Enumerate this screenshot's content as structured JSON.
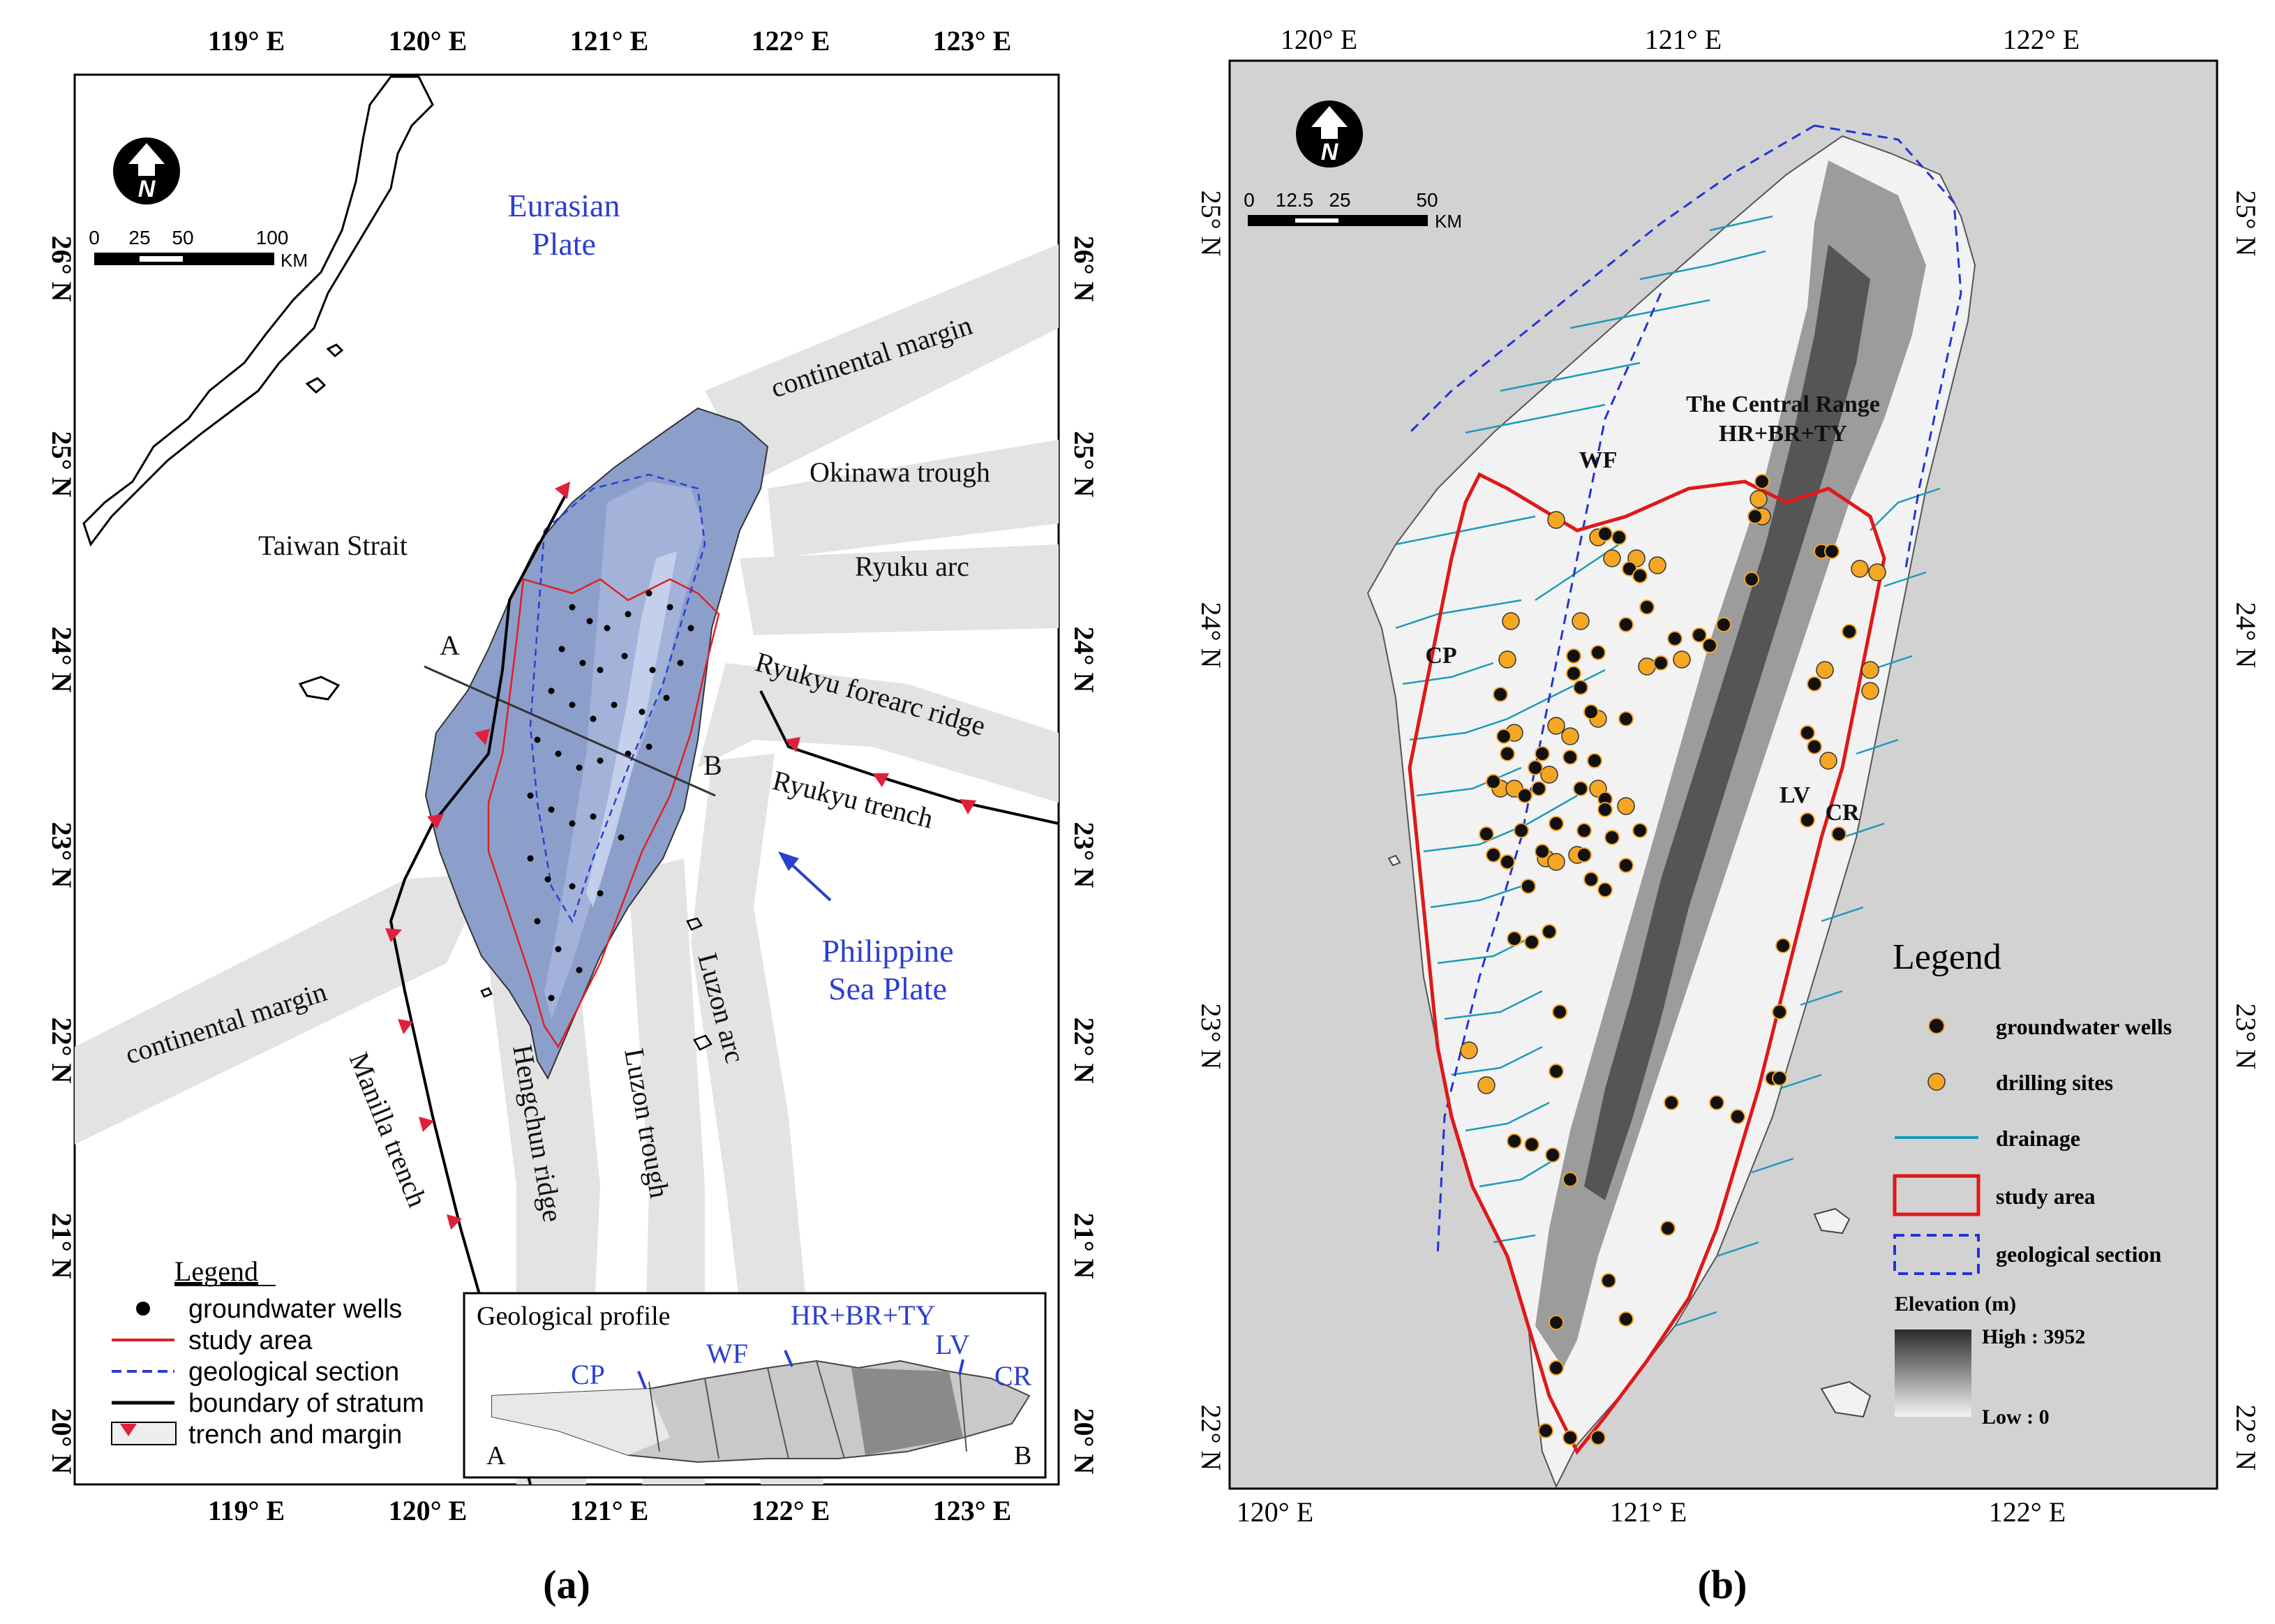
{
  "panel_a": {
    "caption": "(a)",
    "axis_top": [
      "119° E",
      "120° E",
      "121° E",
      "122° E",
      "123° E"
    ],
    "axis_bottom": [
      "119° E",
      "120° E",
      "121° E",
      "122° E",
      "123° E"
    ],
    "axis_left": [
      "26° N",
      "25° N",
      "24° N",
      "23° N",
      "22° N",
      "21° N",
      "20° N"
    ],
    "axis_right": [
      "26° N",
      "25° N",
      "24° N",
      "23° N",
      "22° N",
      "21° N",
      "20° N"
    ],
    "north_letter": "N",
    "scale": {
      "ticks": [
        "0",
        "25",
        "50",
        "100"
      ],
      "unit": "KM"
    },
    "plates": {
      "eurasian_1": "Eurasian",
      "eurasian_2": "Plate",
      "philippine_1": "Philippine",
      "philippine_2": "Sea Plate"
    },
    "labels": {
      "taiwan_strait": "Taiwan Strait",
      "continental_margin_ne": "continental margin",
      "okinawa_trough": "Okinawa trough",
      "ryuku_arc": "Ryuku arc",
      "ryukyu_forearc_ridge": "Ryukyu forearc ridge",
      "ryukyu_trench": "Ryukyu trench",
      "continental_margin_sw": "continental margin",
      "manilla_trench": "Manilla trench",
      "hengchun_ridge": "Hengchun ridge",
      "luzon_trough": "Luzon trough",
      "luzon_arc": "Luzon arc",
      "profile_a": "A",
      "profile_b": "B"
    },
    "legend": {
      "title": "Legend",
      "items": [
        "groundwater wells",
        "study area",
        "geological section",
        "boundary of stratum",
        "trench and margin"
      ]
    },
    "profile": {
      "title": "Geological profile",
      "labels": [
        "CP",
        "WF",
        "HR+BR+TY",
        "LV",
        "CR"
      ],
      "end_a": "A",
      "end_b": "B"
    },
    "colors": {
      "ocean_band": "#e3e3e3",
      "island": "#8c9fcb",
      "study": "#e02020",
      "section": "#2a3fd0",
      "plate_text": "#2b3fd0",
      "trench_marker": "#e0203a"
    }
  },
  "panel_b": {
    "caption": "(b)",
    "axis_top": [
      "120° E",
      "121° E",
      "122° E"
    ],
    "axis_bottom": [
      "120° E",
      "121° E",
      "122° E"
    ],
    "axis_left": [
      "25° N",
      "24° N",
      "23° N",
      "22° N"
    ],
    "axis_right": [
      "25° N",
      "24° N",
      "23° N",
      "22° N"
    ],
    "north_letter": "N",
    "scale": {
      "ticks": [
        "0",
        "12.5",
        "25",
        "50"
      ],
      "unit": "KM"
    },
    "labels": {
      "central_range_1": "The Central Range",
      "central_range_2": "HR+BR+TY",
      "wf": "WF",
      "cp": "CP",
      "lv": "LV",
      "cr": "CR"
    },
    "legend": {
      "title": "Legend",
      "items": [
        "groundwater wells",
        "drilling sites",
        "drainage",
        "study area",
        "geological section"
      ],
      "elevation_title": "Elevation (m)",
      "elevation_high": "High : 3952",
      "elevation_low": "Low : 0"
    },
    "colors": {
      "background": "#d2d2d2",
      "drainage": "#1b9bb8",
      "study": "#e01818",
      "section": "#2433d6",
      "drilling": "#f5a623",
      "well": "#111111"
    }
  }
}
